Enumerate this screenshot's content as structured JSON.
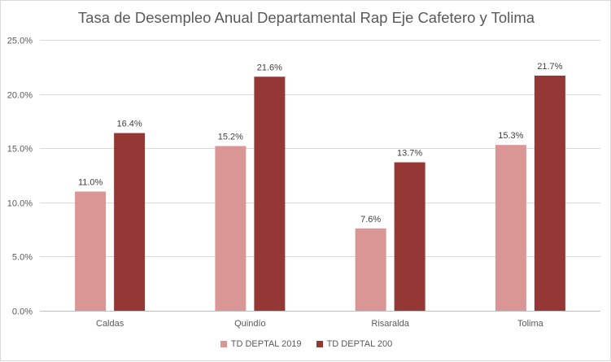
{
  "chart_data": {
    "type": "bar",
    "title": "Tasa de Desempleo Anual Departamental Rap Eje Cafetero y Tolima",
    "xlabel": "",
    "ylabel": "",
    "categories": [
      "Caldas",
      "Quindío",
      "Risaralda",
      "Tolima"
    ],
    "series": [
      {
        "name": "TD DEPTAL 2019",
        "values": [
          11.0,
          15.2,
          7.6,
          15.3
        ],
        "color": "#da9694"
      },
      {
        "name": "TD DEPTAL 200",
        "values": [
          16.4,
          21.6,
          13.7,
          21.7
        ],
        "color": "#953735"
      }
    ],
    "ylim": [
      0,
      25
    ],
    "yticks": [
      0,
      5,
      10,
      15,
      20,
      25
    ],
    "value_format": "percent_1dp",
    "grid": true,
    "legend_position": "bottom"
  }
}
